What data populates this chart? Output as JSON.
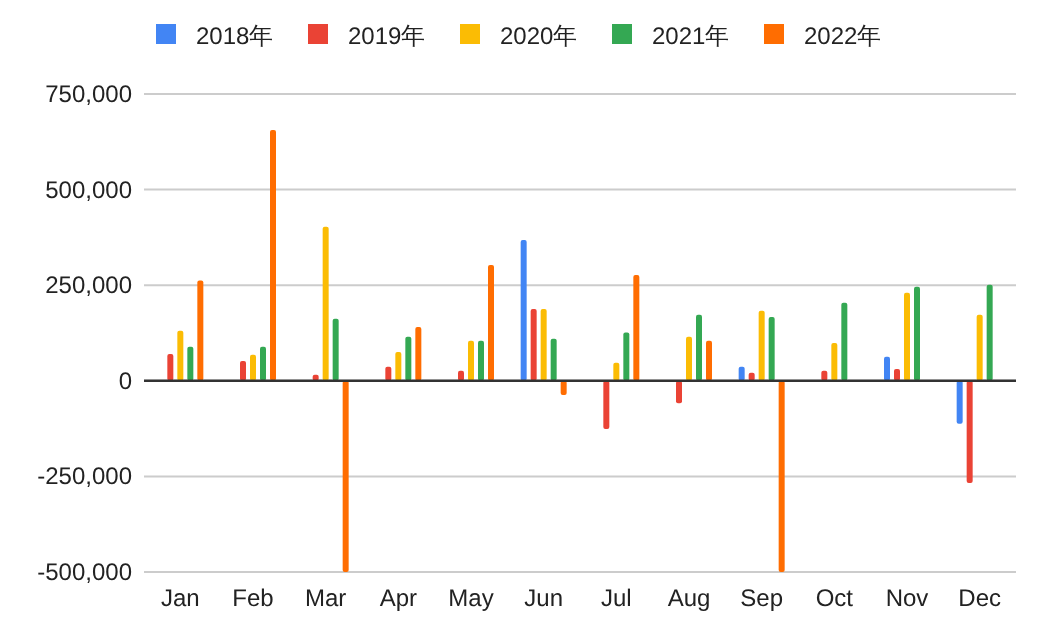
{
  "chart_data": {
    "type": "bar",
    "categories": [
      "Jan",
      "Feb",
      "Mar",
      "Apr",
      "May",
      "Jun",
      "Jul",
      "Aug",
      "Sep",
      "Oct",
      "Nov",
      "Dec"
    ],
    "series": [
      {
        "name": "2018年",
        "color": "#4285f4",
        "values": [
          null,
          null,
          null,
          null,
          null,
          368000,
          null,
          null,
          37000,
          null,
          63000,
          -112000
        ]
      },
      {
        "name": "2019年",
        "color": "#ea4335",
        "values": [
          70000,
          52000,
          16000,
          37000,
          26000,
          188000,
          -126000,
          -59000,
          21000,
          26000,
          31000,
          -267000
        ]
      },
      {
        "name": "2020年",
        "color": "#fbbc04",
        "values": [
          131000,
          68000,
          403000,
          75000,
          105000,
          188000,
          47000,
          115000,
          183000,
          99000,
          230000,
          173000
        ]
      },
      {
        "name": "2021年",
        "color": "#34a853",
        "values": [
          89000,
          89000,
          162000,
          115000,
          105000,
          110000,
          126000,
          173000,
          167000,
          204000,
          246000,
          251000
        ]
      },
      {
        "name": "2022年",
        "color": "#ff6d01",
        "values": [
          262000,
          656000,
          -500000,
          141000,
          303000,
          -37000,
          277000,
          105000,
          -500000,
          null,
          null,
          null
        ]
      }
    ],
    "ylim": [
      -500000,
      750000
    ],
    "yticks": [
      {
        "value": -500000,
        "label": "-500,000"
      },
      {
        "value": -250000,
        "label": "-250,000"
      },
      0,
      {
        "value": 250000,
        "label": "250,000"
      },
      {
        "value": 500000,
        "label": "500,000"
      },
      {
        "value": 750000,
        "label": "750,000"
      }
    ],
    "grid": "y",
    "legend": "top"
  }
}
